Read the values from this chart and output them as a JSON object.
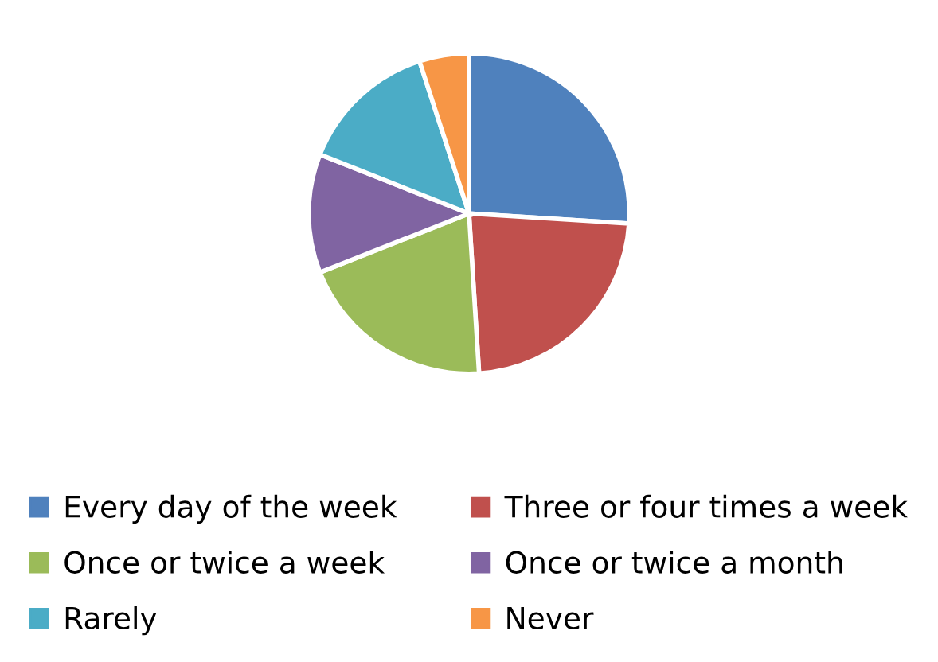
{
  "chart_data": {
    "type": "pie",
    "categories": [
      "Every day of the week",
      "Three or four times a week",
      "Once or twice a week",
      "Once or twice a month",
      "Rarely",
      "Never"
    ],
    "values": [
      26,
      23,
      20,
      12,
      14,
      5
    ],
    "colors": [
      "#4f81bd",
      "#c0504d",
      "#9bbb59",
      "#8064a2",
      "#4bacc6",
      "#f79646"
    ],
    "legend": "bottom"
  }
}
